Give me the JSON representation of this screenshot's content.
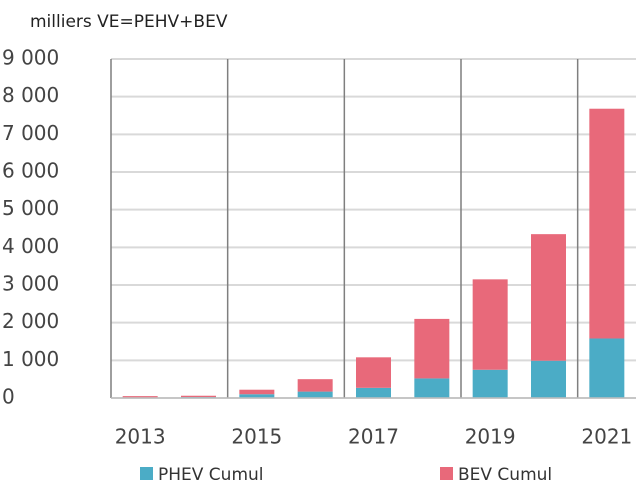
{
  "chart_data": {
    "type": "stacked_bar",
    "title": "milliers VE=PEHV+BEV",
    "categories": [
      "2013",
      null,
      "2015",
      null,
      "2017",
      null,
      "2019",
      null,
      "2021"
    ],
    "series": [
      {
        "name": "PHEV Cumul",
        "color": "#4bacc6",
        "values": [
          15,
          25,
          100,
          170,
          270,
          520,
          750,
          990,
          1580
        ]
      },
      {
        "name": "BEV Cumul",
        "color": "#e8697a",
        "values": [
          35,
          35,
          120,
          330,
          810,
          1580,
          2400,
          3360,
          6100
        ]
      }
    ],
    "ylim": [
      0,
      9000
    ],
    "yticks": [
      0,
      {
        "value": 1000,
        "label": "1 000"
      },
      {
        "value": 2000,
        "label": "2 000"
      },
      {
        "value": 3000,
        "label": "3 000"
      },
      {
        "value": 4000,
        "label": "4 000"
      },
      {
        "value": 5000,
        "label": "5 000"
      },
      {
        "value": 6000,
        "label": "6 000"
      },
      {
        "value": 7000,
        "label": "7 000"
      },
      {
        "value": 8000,
        "label": "8 000"
      },
      {
        "value": 9000,
        "label": "9 000"
      }
    ],
    "grid": true,
    "legend": "bottom"
  }
}
